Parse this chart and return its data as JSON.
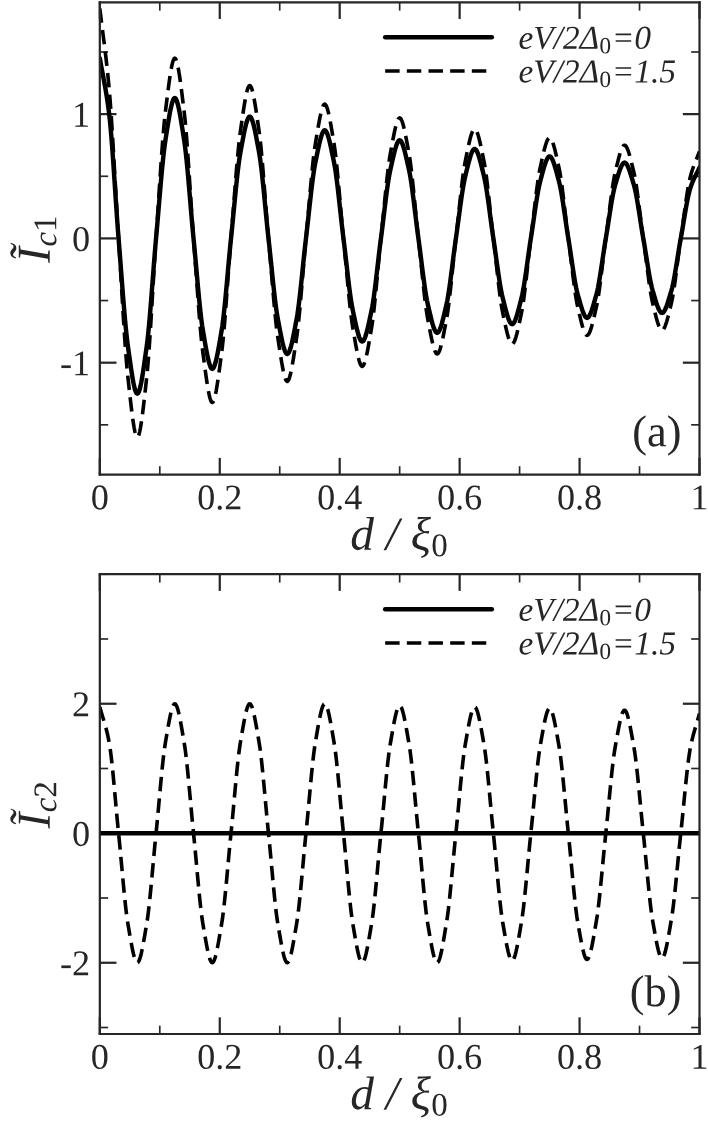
{
  "chart_data": [
    {
      "type": "line",
      "xlabel": "d / ξ$_{0}$",
      "ylabel": "Ĩ$_{c1}$",
      "legend": "top right",
      "grid": false,
      "marker": "none",
      "x": [
        0,
        0.015625,
        0.03125,
        0.046875,
        0.0625,
        0.078125,
        0.09375,
        0.109375,
        0.125,
        0.140625,
        0.15625,
        0.171875,
        0.1875,
        0.203125,
        0.21875,
        0.234375,
        0.25,
        0.265625,
        0.28125,
        0.296875,
        0.3125,
        0.328125,
        0.34375,
        0.359375,
        0.375,
        0.390625,
        0.40625,
        0.421875,
        0.4375,
        0.453125,
        0.46875,
        0.484375,
        0.5,
        0.515625,
        0.53125,
        0.546875,
        0.5625,
        0.578125,
        0.59375,
        0.609375,
        0.625,
        0.640625,
        0.65625,
        0.671875,
        0.6875,
        0.703125,
        0.71875,
        0.734375,
        0.75,
        0.765625,
        0.78125,
        0.796875,
        0.8125,
        0.828125,
        0.84375,
        0.859375,
        0.875,
        0.890625,
        0.90625,
        0.921875,
        0.9375,
        0.953125,
        0.96875,
        0.984375,
        1
      ],
      "xlim": [
        0,
        1
      ],
      "xticks": [
        0,
        0.2,
        0.4,
        0.6,
        0.8,
        1
      ],
      "ylim": [
        -1.9,
        1.9
      ],
      "yticks": [
        -1,
        0,
        1
      ],
      "series": [
        {
          "name": "eV/2Δ$_{0}$=0",
          "color": "#000000",
          "line_style": "solid",
          "values": [
            1.45,
            1.0,
            0,
            -0.87,
            -1.25,
            -0.87,
            0,
            0.79,
            1.13,
            0.79,
            0,
            -0.74,
            -1.05,
            -0.74,
            0,
            0.69,
            0.98,
            0.69,
            0,
            -0.65,
            -0.93,
            -0.65,
            0,
            0.61,
            0.87,
            0.61,
            0,
            -0.58,
            -0.83,
            -0.58,
            0,
            0.55,
            0.79,
            0.55,
            0,
            -0.53,
            -0.76,
            -0.53,
            0,
            0.5,
            0.72,
            0.5,
            0,
            -0.48,
            -0.69,
            -0.48,
            0,
            0.46,
            0.66,
            0.46,
            0,
            -0.45,
            -0.64,
            -0.45,
            0,
            0.43,
            0.61,
            0.43,
            0,
            -0.42,
            -0.6,
            -0.42,
            0,
            0.4,
            0.57
          ]
        },
        {
          "name": "eV/2Δ$_{0}$=1.5",
          "color": "#000000",
          "line_style": "dashed",
          "values": [
            1.85,
            1.2,
            0,
            -1.12,
            -1.6,
            -1.12,
            0,
            1.02,
            1.45,
            1.02,
            0,
            -0.92,
            -1.32,
            -0.92,
            0,
            0.86,
            1.23,
            0.86,
            0,
            -0.8,
            -1.15,
            -0.8,
            0,
            0.76,
            1.08,
            0.76,
            0,
            -0.72,
            -1.03,
            -0.72,
            0,
            0.68,
            0.97,
            0.68,
            0,
            -0.65,
            -0.93,
            -0.65,
            0,
            0.62,
            0.88,
            0.62,
            0,
            -0.6,
            -0.85,
            -0.6,
            0,
            0.57,
            0.81,
            0.57,
            0,
            -0.55,
            -0.78,
            -0.55,
            0,
            0.53,
            0.75,
            0.53,
            0,
            -0.52,
            -0.74,
            -0.52,
            0,
            0.49,
            0.7
          ]
        }
      ],
      "annotations": [
        "(a)"
      ]
    },
    {
      "type": "line",
      "xlabel": "d / ξ$_{0}$",
      "ylabel": "Ĩ$_{c2}$",
      "legend": "top right",
      "grid": false,
      "marker": "none",
      "x": [
        0,
        0.015625,
        0.03125,
        0.046875,
        0.0625,
        0.078125,
        0.09375,
        0.109375,
        0.125,
        0.140625,
        0.15625,
        0.171875,
        0.1875,
        0.203125,
        0.21875,
        0.234375,
        0.25,
        0.265625,
        0.28125,
        0.296875,
        0.3125,
        0.328125,
        0.34375,
        0.359375,
        0.375,
        0.390625,
        0.40625,
        0.421875,
        0.4375,
        0.453125,
        0.46875,
        0.484375,
        0.5,
        0.515625,
        0.53125,
        0.546875,
        0.5625,
        0.578125,
        0.59375,
        0.609375,
        0.625,
        0.640625,
        0.65625,
        0.671875,
        0.6875,
        0.703125,
        0.71875,
        0.734375,
        0.75,
        0.765625,
        0.78125,
        0.796875,
        0.8125,
        0.828125,
        0.84375,
        0.859375,
        0.875,
        0.890625,
        0.90625,
        0.921875,
        0.9375,
        0.953125,
        0.96875,
        0.984375,
        1
      ],
      "xlim": [
        0,
        1
      ],
      "xticks": [
        0,
        0.2,
        0.4,
        0.6,
        0.8,
        1
      ],
      "ylim": [
        -3.1,
        4
      ],
      "yticks": [
        -2,
        0,
        2
      ],
      "series": [
        {
          "name": "eV/2Δ$_{0}$=0",
          "color": "#000000",
          "line_style": "solid",
          "x": [
            0,
            1
          ],
          "values": [
            0,
            0
          ]
        },
        {
          "name": "eV/2Δ$_{0}$=1.5",
          "color": "#000000",
          "line_style": "dashed",
          "values": [
            1.95,
            1.4,
            0,
            -1.4,
            -2,
            -1.4,
            0,
            1.4,
            2,
            1.4,
            0,
            -1.4,
            -2,
            -1.4,
            0,
            1.4,
            2,
            1.4,
            0,
            -1.4,
            -2,
            -1.4,
            0,
            1.4,
            2,
            1.4,
            0,
            -1.4,
            -2,
            -1.4,
            0,
            1.38,
            1.97,
            1.38,
            0,
            -1.4,
            -2,
            -1.38,
            0,
            1.37,
            1.95,
            1.37,
            0,
            -1.38,
            -1.97,
            -1.37,
            0,
            1.35,
            1.93,
            1.35,
            0,
            -1.37,
            -1.95,
            -1.35,
            0,
            1.33,
            1.9,
            1.33,
            0,
            -1.35,
            -1.93,
            -1.33,
            0,
            1.3,
            1.85
          ]
        }
      ],
      "annotations": [
        "(b)"
      ]
    }
  ]
}
